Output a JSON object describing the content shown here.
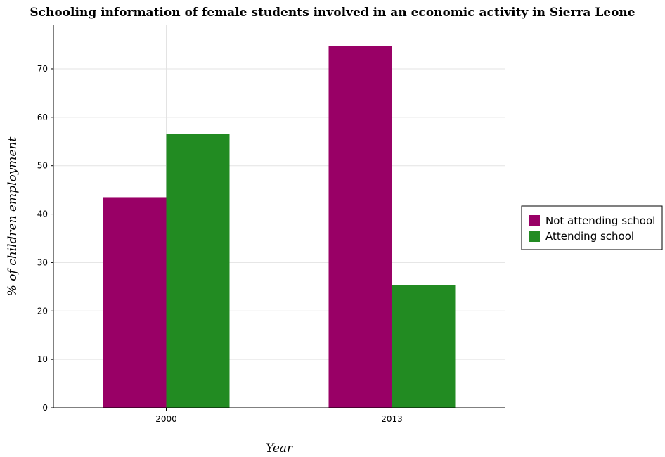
{
  "chart_data": {
    "type": "bar",
    "title": "Schooling information of female students involved in an economic activity in Sierra Leone",
    "xlabel": "Year",
    "ylabel": "% of children employment",
    "categories": [
      "2000",
      "2013"
    ],
    "series": [
      {
        "name": "Not attending school",
        "values": [
          43.5,
          74.7
        ],
        "color": "#990066"
      },
      {
        "name": "Attending school",
        "values": [
          56.5,
          25.3
        ],
        "color": "#228b22"
      }
    ],
    "ylim": [
      0,
      79
    ],
    "yticks": [
      0,
      10,
      20,
      30,
      40,
      50,
      60,
      70
    ],
    "grid": true,
    "legend_position": "right"
  }
}
